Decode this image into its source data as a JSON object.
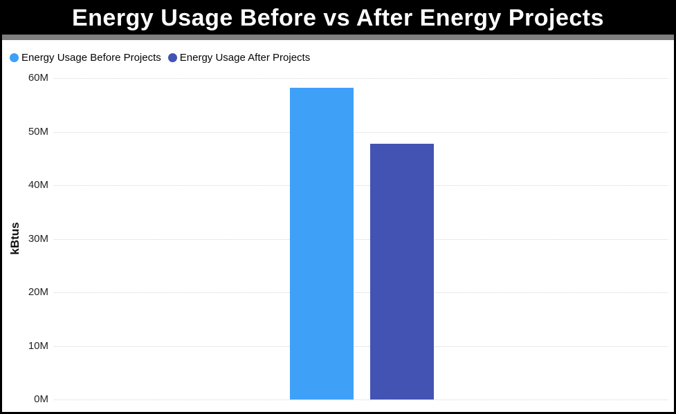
{
  "header": {
    "title": "Energy Usage Before vs After Energy Projects"
  },
  "chart_data": {
    "type": "bar",
    "title": "Energy Usage Before vs After Energy Projects",
    "categories": [
      ""
    ],
    "series": [
      {
        "name": "Energy Usage Before Projects",
        "color": "#3FA0F8",
        "values": [
          58200000
        ]
      },
      {
        "name": "Energy Usage After Projects",
        "color": "#4353B4",
        "values": [
          47800000
        ]
      }
    ],
    "xlabel": "",
    "ylabel": "kBtus",
    "ylim": [
      0,
      60000000
    ],
    "y_ticks": [
      {
        "value": 0,
        "label": "0M"
      },
      {
        "value": 10000000,
        "label": "10M"
      },
      {
        "value": 20000000,
        "label": "20M"
      },
      {
        "value": 30000000,
        "label": "30M"
      },
      {
        "value": 40000000,
        "label": "40M"
      },
      {
        "value": 50000000,
        "label": "50M"
      },
      {
        "value": 60000000,
        "label": "60M"
      }
    ],
    "grid": "horizontal-dotted",
    "legend_position": "top-left",
    "style": {
      "title_bar_background": "#000000",
      "title_text_color": "#ffffff",
      "divider_color": "#7f7f7f",
      "gridline_color": "#d4d4d4",
      "tick_label_color": "#252423"
    }
  }
}
